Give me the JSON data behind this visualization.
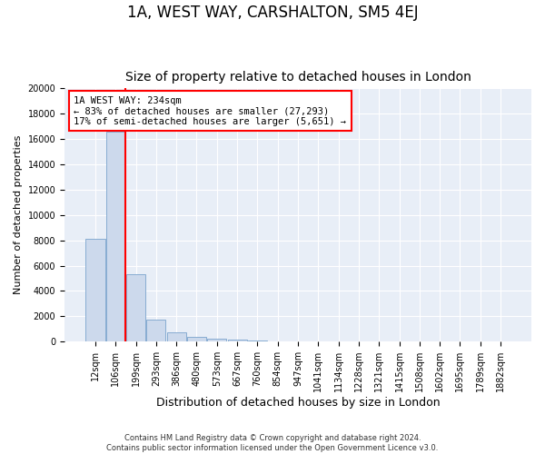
{
  "title": "1A, WEST WAY, CARSHALTON, SM5 4EJ",
  "subtitle": "Size of property relative to detached houses in London",
  "xlabel": "Distribution of detached houses by size in London",
  "ylabel": "Number of detached properties",
  "bar_values": [
    8100,
    16600,
    5300,
    1750,
    700,
    370,
    240,
    180,
    120,
    0,
    0,
    0,
    0,
    0,
    0,
    0,
    0,
    0,
    0,
    0,
    0
  ],
  "bar_labels": [
    "12sqm",
    "106sqm",
    "199sqm",
    "293sqm",
    "386sqm",
    "480sqm",
    "573sqm",
    "667sqm",
    "760sqm",
    "854sqm",
    "947sqm",
    "1041sqm",
    "1134sqm",
    "1228sqm",
    "1321sqm",
    "1415sqm",
    "1508sqm",
    "1602sqm",
    "1695sqm",
    "1789sqm",
    "1882sqm"
  ],
  "bar_color": "#ccd9ec",
  "bar_edge_color": "#7aa3cc",
  "background_color": "#e8eef7",
  "grid_color": "white",
  "red_line_x": 1.5,
  "annotation_text": "1A WEST WAY: 234sqm\n← 83% of detached houses are smaller (27,293)\n17% of semi-detached houses are larger (5,651) →",
  "ylim": [
    0,
    20000
  ],
  "yticks": [
    0,
    2000,
    4000,
    6000,
    8000,
    10000,
    12000,
    14000,
    16000,
    18000,
    20000
  ],
  "footer_text": "Contains HM Land Registry data © Crown copyright and database right 2024.\nContains public sector information licensed under the Open Government Licence v3.0.",
  "title_fontsize": 12,
  "subtitle_fontsize": 10,
  "xlabel_fontsize": 9,
  "ylabel_fontsize": 8,
  "tick_fontsize": 7,
  "annotation_fontsize": 7.5
}
